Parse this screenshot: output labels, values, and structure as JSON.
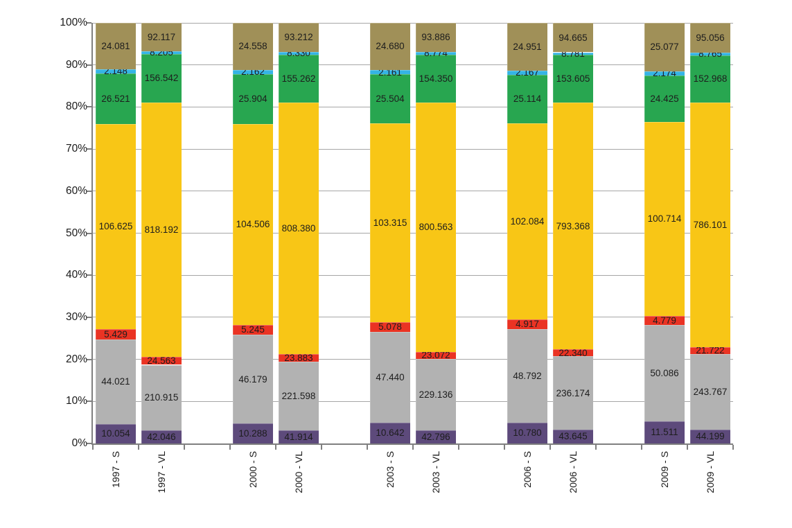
{
  "chart_data": {
    "type": "bar",
    "stacked": "percent",
    "title": "",
    "xlabel": "",
    "ylabel": "",
    "ylim": [
      0,
      100
    ],
    "grid": true,
    "legend_position": "none",
    "value_label_decimals": 3,
    "y_ticks": [
      "0%",
      "10%",
      "20%",
      "30%",
      "40%",
      "50%",
      "60%",
      "70%",
      "80%",
      "90%",
      "100%"
    ],
    "categories": [
      "1997 - S",
      "1997 - VL",
      "2000 - S",
      "2000 - VL",
      "2003 - S",
      "2003 - VL",
      "2006 - S",
      "2006 - VL",
      "2009 - S",
      "2009 - VL"
    ],
    "series": [
      {
        "name": "purple",
        "color": "#5d4a7b",
        "values": [
          10.054,
          42.046,
          10.288,
          41.914,
          10.642,
          42.796,
          10.78,
          43.645,
          11.511,
          44.199
        ]
      },
      {
        "name": "gray",
        "color": "#b2b2b2",
        "values": [
          44.021,
          210.915,
          46.179,
          221.598,
          47.44,
          229.136,
          48.792,
          236.174,
          50.086,
          243.767
        ]
      },
      {
        "name": "red",
        "color": "#ea3323",
        "values": [
          5.429,
          24.563,
          5.245,
          23.883,
          5.078,
          23.072,
          4.917,
          22.34,
          4.779,
          21.722
        ]
      },
      {
        "name": "yellow",
        "color": "#f8c616",
        "values": [
          106.625,
          818.192,
          104.506,
          808.38,
          103.315,
          800.563,
          102.084,
          793.368,
          100.714,
          786.101
        ]
      },
      {
        "name": "green",
        "color": "#28a650",
        "values": [
          26.521,
          156.542,
          25.904,
          155.262,
          25.504,
          154.35,
          25.114,
          153.605,
          24.425,
          152.968
        ]
      },
      {
        "name": "light-blue",
        "color": "#35b4e5",
        "values": [
          2.148,
          8.205,
          2.162,
          8.33,
          2.161,
          8.774,
          2.167,
          8.781,
          2.174,
          8.765
        ]
      },
      {
        "name": "olive",
        "color": "#a09058",
        "values": [
          24.081,
          92.117,
          24.558,
          93.212,
          24.68,
          93.886,
          24.951,
          94.665,
          25.077,
          95.056
        ]
      }
    ],
    "colors": {
      "gridline": "#a6a6a6",
      "axis": "#7f7f7f",
      "label_text": "#1d1d1d"
    }
  }
}
